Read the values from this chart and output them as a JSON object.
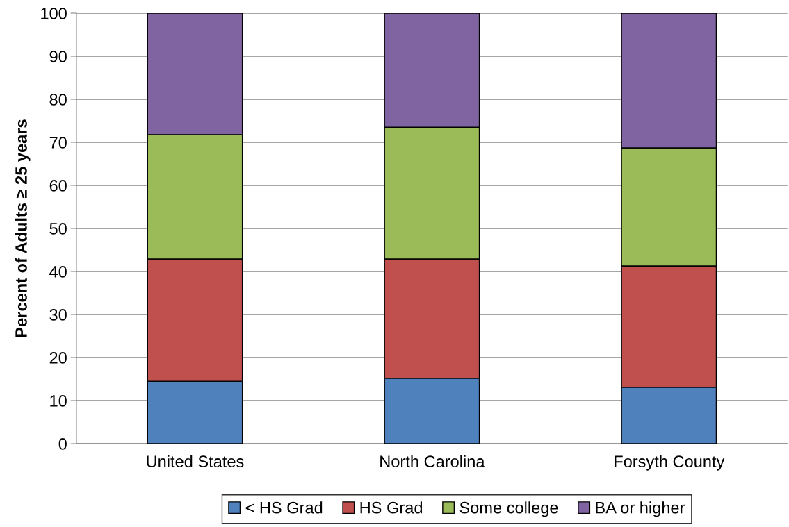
{
  "chart_data": {
    "type": "bar",
    "stacked": true,
    "ylabel": "Percent of Adults ≥ 25 years",
    "categories": [
      "United States",
      "North Carolina",
      "Forsyth County"
    ],
    "series": [
      {
        "name": "< HS Grad",
        "color": "#4f81bd",
        "values": [
          14.5,
          15.2,
          13.1
        ]
      },
      {
        "name": "HS Grad",
        "color": "#c0504d",
        "values": [
          28.4,
          27.7,
          28.2
        ]
      },
      {
        "name": "Some college",
        "color": "#9bbb59",
        "values": [
          28.9,
          30.6,
          27.4
        ]
      },
      {
        "name": "BA or higher",
        "color": "#8064a2",
        "values": [
          28.2,
          26.5,
          31.3
        ]
      }
    ],
    "ylim": [
      0,
      100
    ],
    "yticks": [
      0,
      10,
      20,
      30,
      40,
      50,
      60,
      70,
      80,
      90,
      100
    ],
    "grid": "y",
    "legend": "bottom"
  }
}
